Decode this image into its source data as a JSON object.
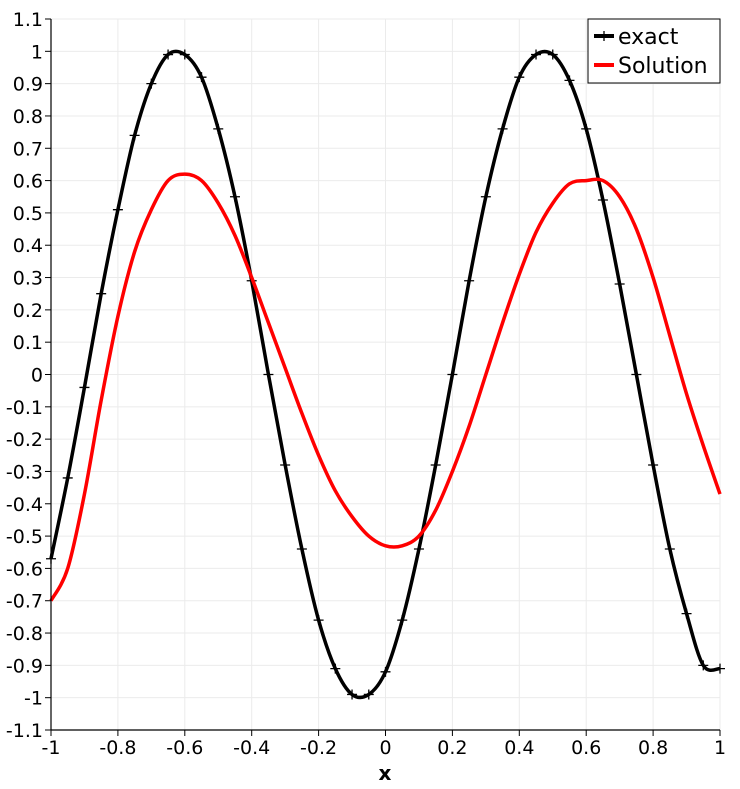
{
  "chart_data": {
    "type": "line",
    "title": "",
    "xlabel": "x",
    "ylabel": "",
    "xlim": [
      -1,
      1
    ],
    "ylim": [
      -1.1,
      1.1
    ],
    "grid": true,
    "legend_position": "top-right",
    "x_ticks": [
      "-1",
      "-0.8",
      "-0.6",
      "-0.4",
      "-0.2",
      "0",
      "0.2",
      "0.4",
      "0.6",
      "0.8",
      "1"
    ],
    "y_ticks": [
      "1.1",
      "1",
      "0.9",
      "0.8",
      "0.7",
      "0.6",
      "0.5",
      "0.4",
      "0.3",
      "0.2",
      "0.1",
      "0",
      "-0.1",
      "-0.2",
      "-0.3",
      "-0.4",
      "-0.5",
      "-0.6",
      "-0.7",
      "-0.8",
      "-0.9",
      "-1",
      "-1.1"
    ],
    "series": [
      {
        "name": "exact",
        "color": "#000000",
        "marker": "plus",
        "x": [
          -1.0,
          -0.95,
          -0.9,
          -0.85,
          -0.8,
          -0.75,
          -0.7,
          -0.65,
          -0.6,
          -0.55,
          -0.5,
          -0.45,
          -0.4,
          -0.35,
          -0.3,
          -0.25,
          -0.2,
          -0.15,
          -0.1,
          -0.05,
          0.0,
          0.05,
          0.1,
          0.15,
          0.2,
          0.25,
          0.3,
          0.35,
          0.4,
          0.45,
          0.5,
          0.55,
          0.6,
          0.65,
          0.7,
          0.75,
          0.8,
          0.85,
          0.9,
          0.95,
          1.0
        ],
        "y": [
          -0.57,
          -0.32,
          -0.04,
          0.25,
          0.51,
          0.74,
          0.9,
          0.99,
          0.99,
          0.92,
          0.76,
          0.55,
          0.29,
          0.0,
          -0.28,
          -0.54,
          -0.76,
          -0.91,
          -0.99,
          -0.99,
          -0.92,
          -0.76,
          -0.54,
          -0.28,
          0.0,
          0.29,
          0.55,
          0.76,
          0.92,
          0.99,
          0.99,
          0.91,
          0.76,
          0.54,
          0.28,
          0.0,
          -0.28,
          -0.54,
          -0.74,
          -0.9,
          -0.91
        ]
      },
      {
        "name": "Solution",
        "color": "#ff0000",
        "marker": "none",
        "x": [
          -1.0,
          -0.95,
          -0.9,
          -0.85,
          -0.8,
          -0.75,
          -0.7,
          -0.65,
          -0.6,
          -0.55,
          -0.5,
          -0.45,
          -0.4,
          -0.35,
          -0.3,
          -0.25,
          -0.2,
          -0.15,
          -0.1,
          -0.05,
          0.0,
          0.05,
          0.1,
          0.15,
          0.2,
          0.25,
          0.3,
          0.35,
          0.4,
          0.45,
          0.5,
          0.55,
          0.6,
          0.65,
          0.7,
          0.75,
          0.8,
          0.85,
          0.9,
          0.95,
          1.0
        ],
        "y": [
          -0.7,
          -0.6,
          -0.37,
          -0.08,
          0.18,
          0.38,
          0.51,
          0.6,
          0.62,
          0.6,
          0.53,
          0.43,
          0.3,
          0.16,
          0.02,
          -0.12,
          -0.25,
          -0.36,
          -0.44,
          -0.5,
          -0.53,
          -0.53,
          -0.5,
          -0.42,
          -0.3,
          -0.16,
          0.0,
          0.16,
          0.31,
          0.44,
          0.53,
          0.59,
          0.6,
          0.6,
          0.55,
          0.45,
          0.3,
          0.12,
          -0.06,
          -0.22,
          -0.37
        ]
      }
    ]
  }
}
